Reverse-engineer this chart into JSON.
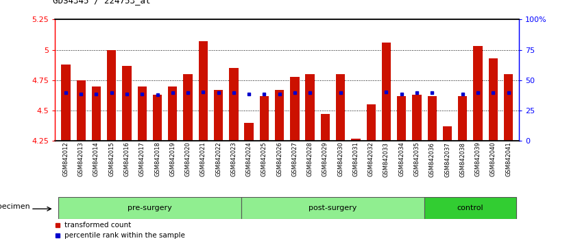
{
  "title": "GDS4345 / 224753_at",
  "samples": [
    "GSM842012",
    "GSM842013",
    "GSM842014",
    "GSM842015",
    "GSM842016",
    "GSM842017",
    "GSM842018",
    "GSM842019",
    "GSM842020",
    "GSM842021",
    "GSM842022",
    "GSM842023",
    "GSM842024",
    "GSM842025",
    "GSM842026",
    "GSM842027",
    "GSM842028",
    "GSM842029",
    "GSM842030",
    "GSM842031",
    "GSM842032",
    "GSM842033",
    "GSM842034",
    "GSM842035",
    "GSM842036",
    "GSM842037",
    "GSM842038",
    "GSM842039",
    "GSM842040",
    "GSM842041"
  ],
  "bar_heights": [
    4.88,
    4.75,
    4.7,
    5.0,
    4.87,
    4.7,
    4.63,
    4.7,
    4.8,
    5.07,
    4.67,
    4.85,
    4.4,
    4.62,
    4.67,
    4.78,
    4.8,
    4.47,
    4.8,
    4.27,
    4.55,
    5.06,
    4.62,
    4.63,
    4.62,
    4.37,
    4.62,
    5.03,
    4.93,
    4.8
  ],
  "blue_dot_values": [
    4.645,
    4.635,
    4.635,
    4.645,
    4.638,
    4.635,
    4.63,
    4.645,
    4.645,
    4.655,
    4.645,
    4.645,
    4.635,
    4.638,
    4.638,
    4.645,
    4.645,
    null,
    4.645,
    null,
    null,
    4.655,
    4.638,
    4.645,
    4.645,
    null,
    4.638,
    4.645,
    4.645,
    4.645
  ],
  "groups": [
    {
      "label": "pre-surgery",
      "start": 0,
      "end": 12,
      "color": "#90EE90"
    },
    {
      "label": "post-surgery",
      "start": 12,
      "end": 24,
      "color": "#90EE90"
    },
    {
      "label": "control",
      "start": 24,
      "end": 30,
      "color": "#32CD32"
    }
  ],
  "ymin": 4.25,
  "ymax": 5.25,
  "yticks": [
    4.25,
    4.5,
    4.75,
    5.0,
    5.25
  ],
  "ytick_labels": [
    "4.25",
    "4.5",
    "4.75",
    "5",
    "5.25"
  ],
  "right_ytick_labels": [
    "100%",
    "75",
    "50",
    "25",
    "0"
  ],
  "right_ytick_pct": [
    100,
    75,
    50,
    25,
    0
  ],
  "bar_color": "#CC1100",
  "blue_color": "#0000CC",
  "bar_width": 0.6,
  "specimen_label": "specimen",
  "legend_items": [
    {
      "label": "transformed count",
      "color": "#CC1100"
    },
    {
      "label": "percentile rank within the sample",
      "color": "#0000CC"
    }
  ]
}
